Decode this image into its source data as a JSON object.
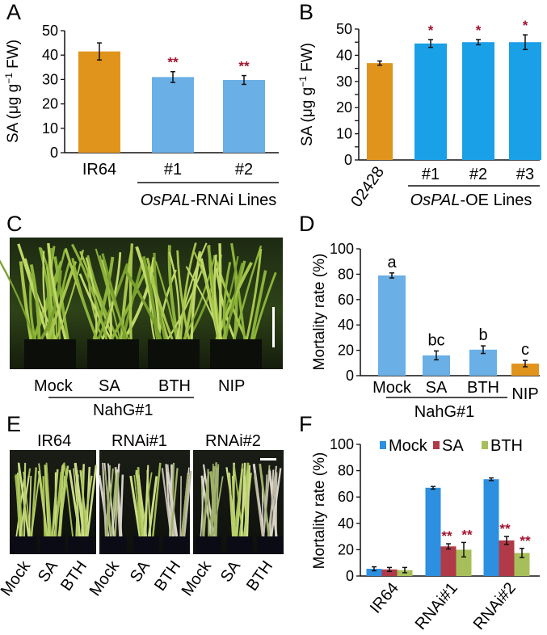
{
  "colors": {
    "orange": "#e0941c",
    "blue": "#6aafe6",
    "sky": "#1aa0e6",
    "bright_blue": "#2c8fe0",
    "red": "#b03a48",
    "green": "#a7bf5a",
    "sig_red": "#a3122d",
    "axis": "#111111"
  },
  "panels": {
    "A": {
      "letter": "A"
    },
    "B": {
      "letter": "B"
    },
    "C": {
      "letter": "C",
      "photo_alt": "rice-seedling-photo",
      "labels": [
        "Mock",
        "SA",
        "BTH",
        "NIP"
      ],
      "group_label": "NahG#1"
    },
    "D": {
      "letter": "D"
    },
    "E": {
      "letter": "E",
      "photo_titles": [
        "IR64",
        "RNAi#1",
        "RNAi#2"
      ],
      "tick_labels": [
        "Mock",
        "SA",
        "BTH",
        "Mock",
        "SA",
        "BTH",
        "Mock",
        "SA",
        "BTH"
      ]
    },
    "F": {
      "letter": "F"
    }
  },
  "chart_data": [
    {
      "id": "A",
      "type": "bar",
      "ylabel_prefix": "SA (μg g",
      "ylabel_sup": "−1",
      "ylabel_suffix": " FW)",
      "ylim": [
        0,
        50
      ],
      "yticks": [
        0,
        10,
        20,
        30,
        40,
        50
      ],
      "categories": [
        "IR64",
        "#1",
        "#2"
      ],
      "values": [
        41.5,
        31.0,
        29.8
      ],
      "errors": [
        3.5,
        2.2,
        1.8
      ],
      "colors": [
        "orange",
        "blue",
        "blue"
      ],
      "significance": [
        "",
        "**",
        "**"
      ],
      "group_label_italic": "OsPAL",
      "group_label_rest": "-RNAi Lines"
    },
    {
      "id": "B",
      "type": "bar",
      "ylabel_prefix": "SA (μg g",
      "ylabel_sup": "−1",
      "ylabel_suffix": " FW)",
      "ylim": [
        0,
        50
      ],
      "yticks": [
        0,
        5,
        10,
        15,
        20,
        25,
        30,
        35,
        40,
        45,
        50
      ],
      "ytick_labels": [
        "0",
        "",
        "10",
        "",
        "20",
        "",
        "30",
        "",
        "40",
        "",
        "50"
      ],
      "categories": [
        "02428",
        "#1",
        "#2",
        "#3"
      ],
      "values": [
        37.0,
        44.5,
        45.0,
        45.0
      ],
      "errors": [
        0.8,
        1.5,
        1.0,
        2.8
      ],
      "colors": [
        "orange",
        "sky",
        "sky",
        "sky"
      ],
      "significance": [
        "",
        "*",
        "*",
        "*"
      ],
      "group_label_italic": "OsPAL",
      "group_label_rest": "-OE Lines"
    },
    {
      "id": "D",
      "type": "bar",
      "ylabel": "Mortality rate (%)",
      "ylim": [
        0,
        100
      ],
      "yticks": [
        0,
        20,
        40,
        60,
        80,
        100
      ],
      "categories": [
        "Mock",
        "SA",
        "BTH",
        "NIP"
      ],
      "values": [
        79.0,
        16.0,
        20.5,
        9.5
      ],
      "errors": [
        2.0,
        3.5,
        3.0,
        2.5
      ],
      "colors": [
        "blue",
        "blue",
        "blue",
        "orange"
      ],
      "letters": [
        "a",
        "bc",
        "b",
        "c"
      ],
      "group_label": "NahG#1"
    },
    {
      "id": "F",
      "type": "bar",
      "ylabel": "Mortality rate (%)",
      "ylim": [
        0,
        100
      ],
      "yticks": [
        0,
        20,
        40,
        60,
        80,
        100
      ],
      "categories": [
        "IR64",
        "RNAi#1",
        "RNAi#2"
      ],
      "legend_position": "top",
      "series": [
        {
          "name": "Mock",
          "color": "bright_blue",
          "values": [
            5.5,
            67.0,
            73.5
          ],
          "errors": [
            1.5,
            1.0,
            1.0
          ],
          "significance": [
            "",
            "",
            ""
          ]
        },
        {
          "name": "SA",
          "color": "red",
          "values": [
            5.0,
            22.5,
            27.0
          ],
          "errors": [
            1.5,
            2.0,
            3.0
          ],
          "significance": [
            "",
            "**",
            "**"
          ]
        },
        {
          "name": "BTH",
          "color": "green",
          "values": [
            4.5,
            20.0,
            17.5
          ],
          "errors": [
            2.0,
            5.5,
            3.5
          ],
          "significance": [
            "",
            "**",
            "**"
          ]
        }
      ]
    }
  ]
}
